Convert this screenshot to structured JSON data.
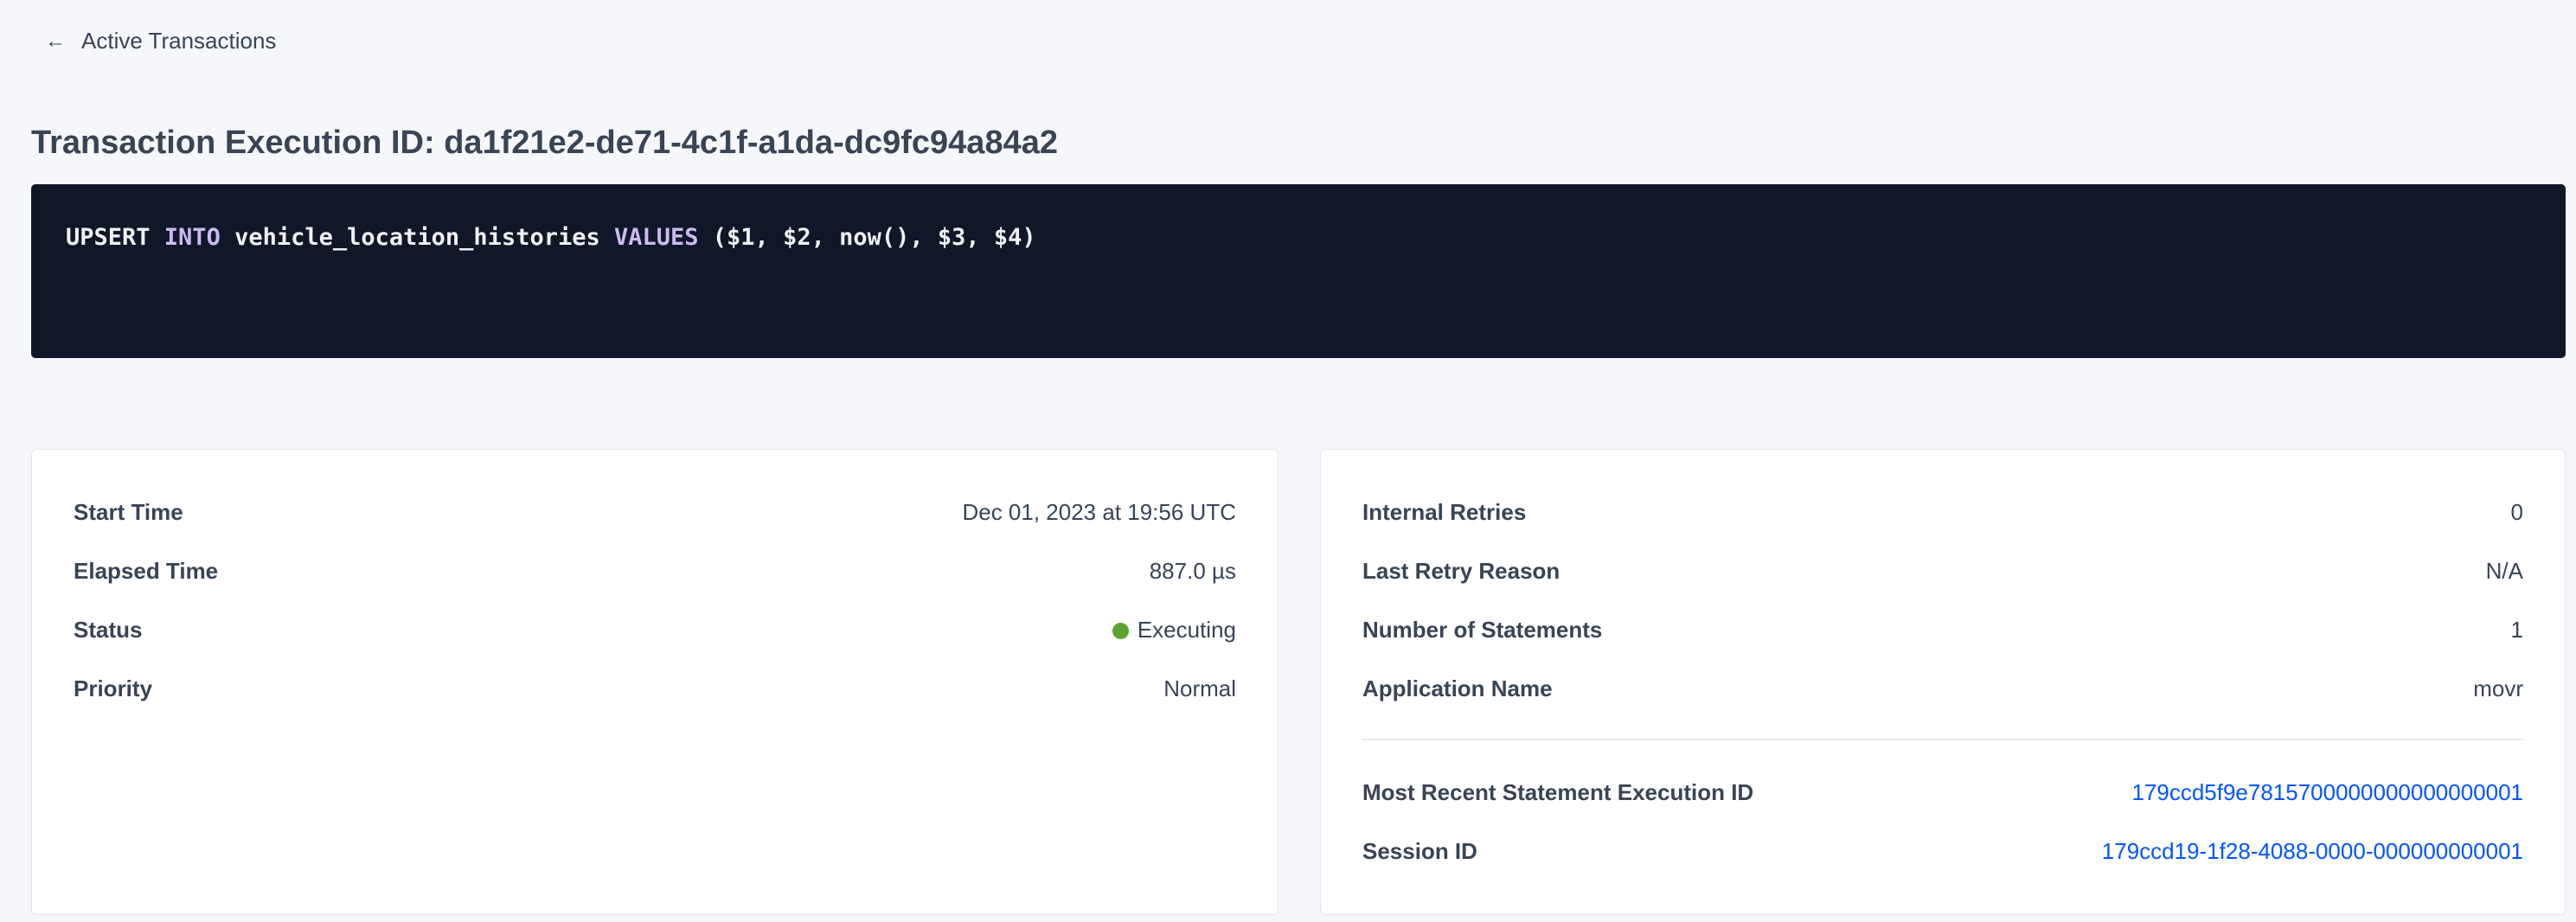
{
  "nav": {
    "back_label": "Active Transactions",
    "back_icon": "arrow-left-icon"
  },
  "header": {
    "title": "Transaction Execution ID: da1f21e2-de71-4c1f-a1da-dc9fc94a84a2"
  },
  "query": {
    "parts": [
      "UPSERT ",
      "INTO",
      " vehicle_location_histories ",
      "VALUES",
      " ($1, $2, now(), $3, $4)"
    ]
  },
  "left_card": {
    "rows": [
      {
        "label": "Start Time",
        "value": "Dec 01, 2023 at 19:56 UTC"
      },
      {
        "label": "Elapsed Time",
        "value": "887.0 µs"
      },
      {
        "label": "Status",
        "value": "Executing",
        "status_color": "#5aa532"
      },
      {
        "label": "Priority",
        "value": "Normal"
      }
    ]
  },
  "right_card": {
    "rows": [
      {
        "label": "Internal Retries",
        "value": "0"
      },
      {
        "label": "Last Retry Reason",
        "value": "N/A"
      },
      {
        "label": "Number of Statements",
        "value": "1"
      },
      {
        "label": "Application Name",
        "value": "movr"
      }
    ],
    "links": [
      {
        "label": "Most Recent Statement Execution ID",
        "value": "179ccd5f9e7815700000000000000001"
      },
      {
        "label": "Session ID",
        "value": "179ccd19-1f28-4088-0000-000000000001"
      }
    ]
  },
  "colors": {
    "link": "#0055ff",
    "code_bg": "#101728",
    "keyword": "#c9bbf0"
  }
}
